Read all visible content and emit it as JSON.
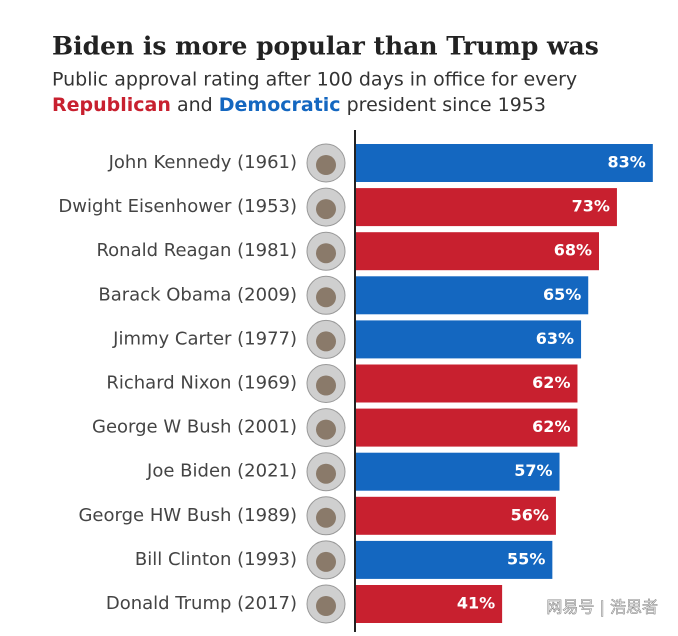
{
  "chart_data": {
    "type": "bar",
    "orientation": "horizontal",
    "title": "Biden is more popular than Trump was",
    "subtitle": [
      "Public approval rating after 100 days in office for every",
      "and",
      "president since 1953"
    ],
    "categories": [
      "John Kennedy (1961)",
      "Dwight Eisenhower (1953)",
      "Ronald Reagan (1981)",
      "Barack Obama (2009)",
      "Jimmy Carter (1977)",
      "Richard Nixon (1969)",
      "George W Bush (2001)",
      "Joe Biden (2021)",
      "George HW Bush (1989)",
      "Bill Clinton (1993)",
      "Donald Trump (2017)"
    ],
    "series": [
      {
        "name": "Republican",
        "color": "#c8202f",
        "values": [
          null,
          73,
          68,
          null,
          null,
          62,
          62,
          null,
          56,
          null,
          41
        ],
        "value_labels": [
          null,
          "73%",
          "68%",
          null,
          null,
          "62%",
          "62%",
          null,
          "56%",
          null,
          "41%"
        ]
      },
      {
        "name": "Democratic",
        "color": "#1467c0",
        "values": [
          83,
          null,
          null,
          65,
          63,
          null,
          null,
          57,
          null,
          55,
          null
        ],
        "value_labels": [
          "83%",
          null,
          null,
          "65%",
          "63%",
          null,
          null,
          "57%",
          null,
          "55%",
          null
        ]
      }
    ],
    "xlim": [
      0,
      85
    ],
    "watermark": "网易号 | 浩思者"
  }
}
